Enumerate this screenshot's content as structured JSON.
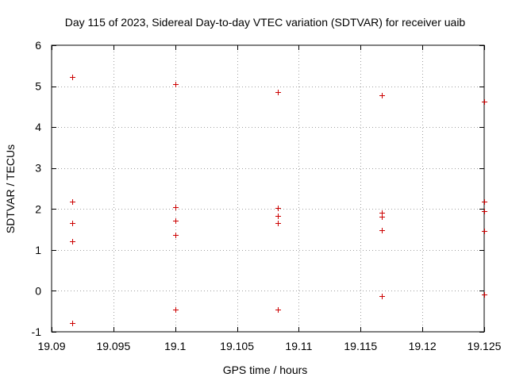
{
  "chart_data": {
    "type": "scatter",
    "title": "Day 115 of 2023, Sidereal Day-to-day VTEC variation (SDTVAR) for receiver uaib",
    "xlabel": "GPS time / hours",
    "ylabel": "SDTVAR / TECUs",
    "xlim": [
      19.09,
      19.125
    ],
    "ylim": [
      -1,
      6
    ],
    "grid": true,
    "marker": "+",
    "marker_color": "#cc0000",
    "x_ticks": [
      19.09,
      19.095,
      19.1,
      19.105,
      19.11,
      19.115,
      19.12,
      19.125
    ],
    "x_tick_labels": [
      "19.09",
      "19.095",
      "19.1",
      "19.105",
      "19.11",
      "19.115",
      "19.12",
      "19.125"
    ],
    "y_ticks": [
      -1,
      0,
      1,
      2,
      3,
      4,
      5,
      6
    ],
    "y_tick_labels": [
      "-1",
      "0",
      "1",
      "2",
      "3",
      "4",
      "5",
      "6"
    ],
    "series": [
      {
        "name": "SDTVAR",
        "points": [
          {
            "x": 19.0917,
            "y": 5.23
          },
          {
            "x": 19.0917,
            "y": 2.18
          },
          {
            "x": 19.0917,
            "y": 1.65
          },
          {
            "x": 19.0917,
            "y": 1.22
          },
          {
            "x": 19.0917,
            "y": -0.78
          },
          {
            "x": 19.1,
            "y": 5.05
          },
          {
            "x": 19.1,
            "y": 2.04
          },
          {
            "x": 19.1,
            "y": 1.71
          },
          {
            "x": 19.1,
            "y": 1.36
          },
          {
            "x": 19.1,
            "y": -0.46
          },
          {
            "x": 19.1083,
            "y": 4.86
          },
          {
            "x": 19.1083,
            "y": 2.02
          },
          {
            "x": 19.1083,
            "y": 1.84
          },
          {
            "x": 19.1083,
            "y": 1.65
          },
          {
            "x": 19.1083,
            "y": -0.46
          },
          {
            "x": 19.1167,
            "y": 4.77
          },
          {
            "x": 19.1167,
            "y": 1.9
          },
          {
            "x": 19.1167,
            "y": 1.81
          },
          {
            "x": 19.1167,
            "y": 1.48
          },
          {
            "x": 19.1167,
            "y": -0.13
          },
          {
            "x": 19.125,
            "y": 4.63
          },
          {
            "x": 19.125,
            "y": 2.18
          },
          {
            "x": 19.125,
            "y": 1.95
          },
          {
            "x": 19.125,
            "y": 1.46
          },
          {
            "x": 19.125,
            "y": -0.08
          }
        ]
      }
    ]
  }
}
